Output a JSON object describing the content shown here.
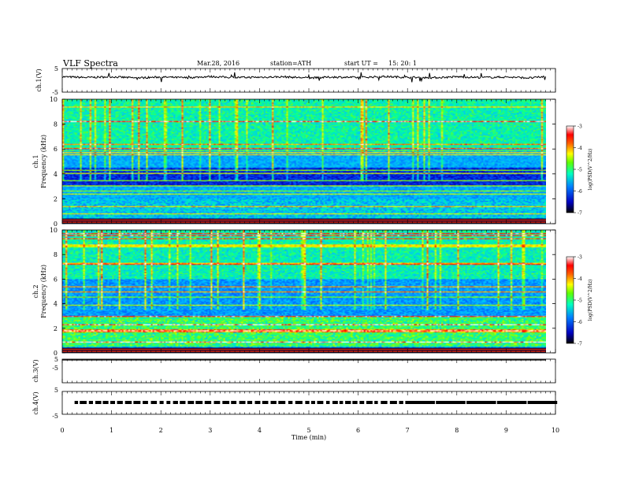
{
  "header": {
    "title": "VLF  Spectra",
    "date": "Mar.28, 2016",
    "station": "station=ATH",
    "start_label": "start  UT  =",
    "start_time": "15: 20: 1"
  },
  "chart_data": [
    {
      "type": "line",
      "panel": "ch1-voltage",
      "ylabel": "ch.1(V)",
      "ylim": [
        -5,
        5
      ],
      "yticks": [
        "5",
        "-5"
      ],
      "x": [
        0,
        0.5,
        1,
        1.5,
        2,
        2.5,
        3,
        3.5,
        4,
        4.5,
        5,
        5.5,
        6,
        6.5,
        7,
        7.5,
        8,
        8.5,
        9,
        9.5,
        9.8
      ],
      "y": [
        1.5,
        1.2,
        1.5,
        1.0,
        1.4,
        1.1,
        1.6,
        1.2,
        1.3,
        1.5,
        1.0,
        1.4,
        1.2,
        1.6,
        1.3,
        1.1,
        1.5,
        1.2,
        1.4,
        1.0,
        1.6
      ],
      "series_color": "#000000"
    },
    {
      "type": "heatmap",
      "panel": "ch1-spectrogram",
      "ylabel": "ch.1\nFrequency  (kHz)",
      "ylim": [
        0,
        10
      ],
      "yticks": [
        "0",
        "2",
        "4",
        "6",
        "8",
        "10"
      ],
      "colorbar": {
        "label": "log(PSD(V^2/Hz)",
        "range": [
          -7,
          -3
        ],
        "ticks": [
          "-3",
          "-4",
          "-5",
          "-6",
          "-7"
        ]
      }
    },
    {
      "type": "heatmap",
      "panel": "ch2-spectrogram",
      "ylabel": "ch.2\nFrequency  (kHz)",
      "ylim": [
        0,
        10
      ],
      "yticks": [
        "0",
        "2",
        "4",
        "6",
        "8",
        "10"
      ],
      "colorbar": {
        "label": "log(PSD(V^2/Hz)",
        "range": [
          -7,
          -3
        ],
        "ticks": [
          "-3",
          "-4",
          "-5",
          "-6",
          "-7"
        ]
      }
    },
    {
      "type": "line",
      "panel": "ch3-voltage",
      "ylabel": "ch.3(V)",
      "ylim": [
        -5,
        5
      ],
      "yticks": [
        "5",
        "-5"
      ],
      "x": [
        0,
        9.8
      ],
      "y": [
        5,
        5
      ]
    },
    {
      "type": "line",
      "panel": "ch4-voltage",
      "ylabel": "ch.4(V)",
      "ylim": [
        -5,
        5
      ],
      "yticks": [
        "5",
        "-5"
      ],
      "x": [
        0.25,
        9.8
      ],
      "y": [
        0,
        0
      ]
    }
  ],
  "xaxis": {
    "label": "Time  (min)",
    "range": [
      0,
      10
    ],
    "ticks": [
      "0",
      "1",
      "2",
      "3",
      "4",
      "5",
      "6",
      "7",
      "8",
      "9",
      "10"
    ]
  },
  "colormap": [
    "#000020",
    "#0000c0",
    "#0060ff",
    "#00c0ff",
    "#00ffa0",
    "#80ff00",
    "#ffff00",
    "#ff8000",
    "#ff0000",
    "#ffffff"
  ]
}
